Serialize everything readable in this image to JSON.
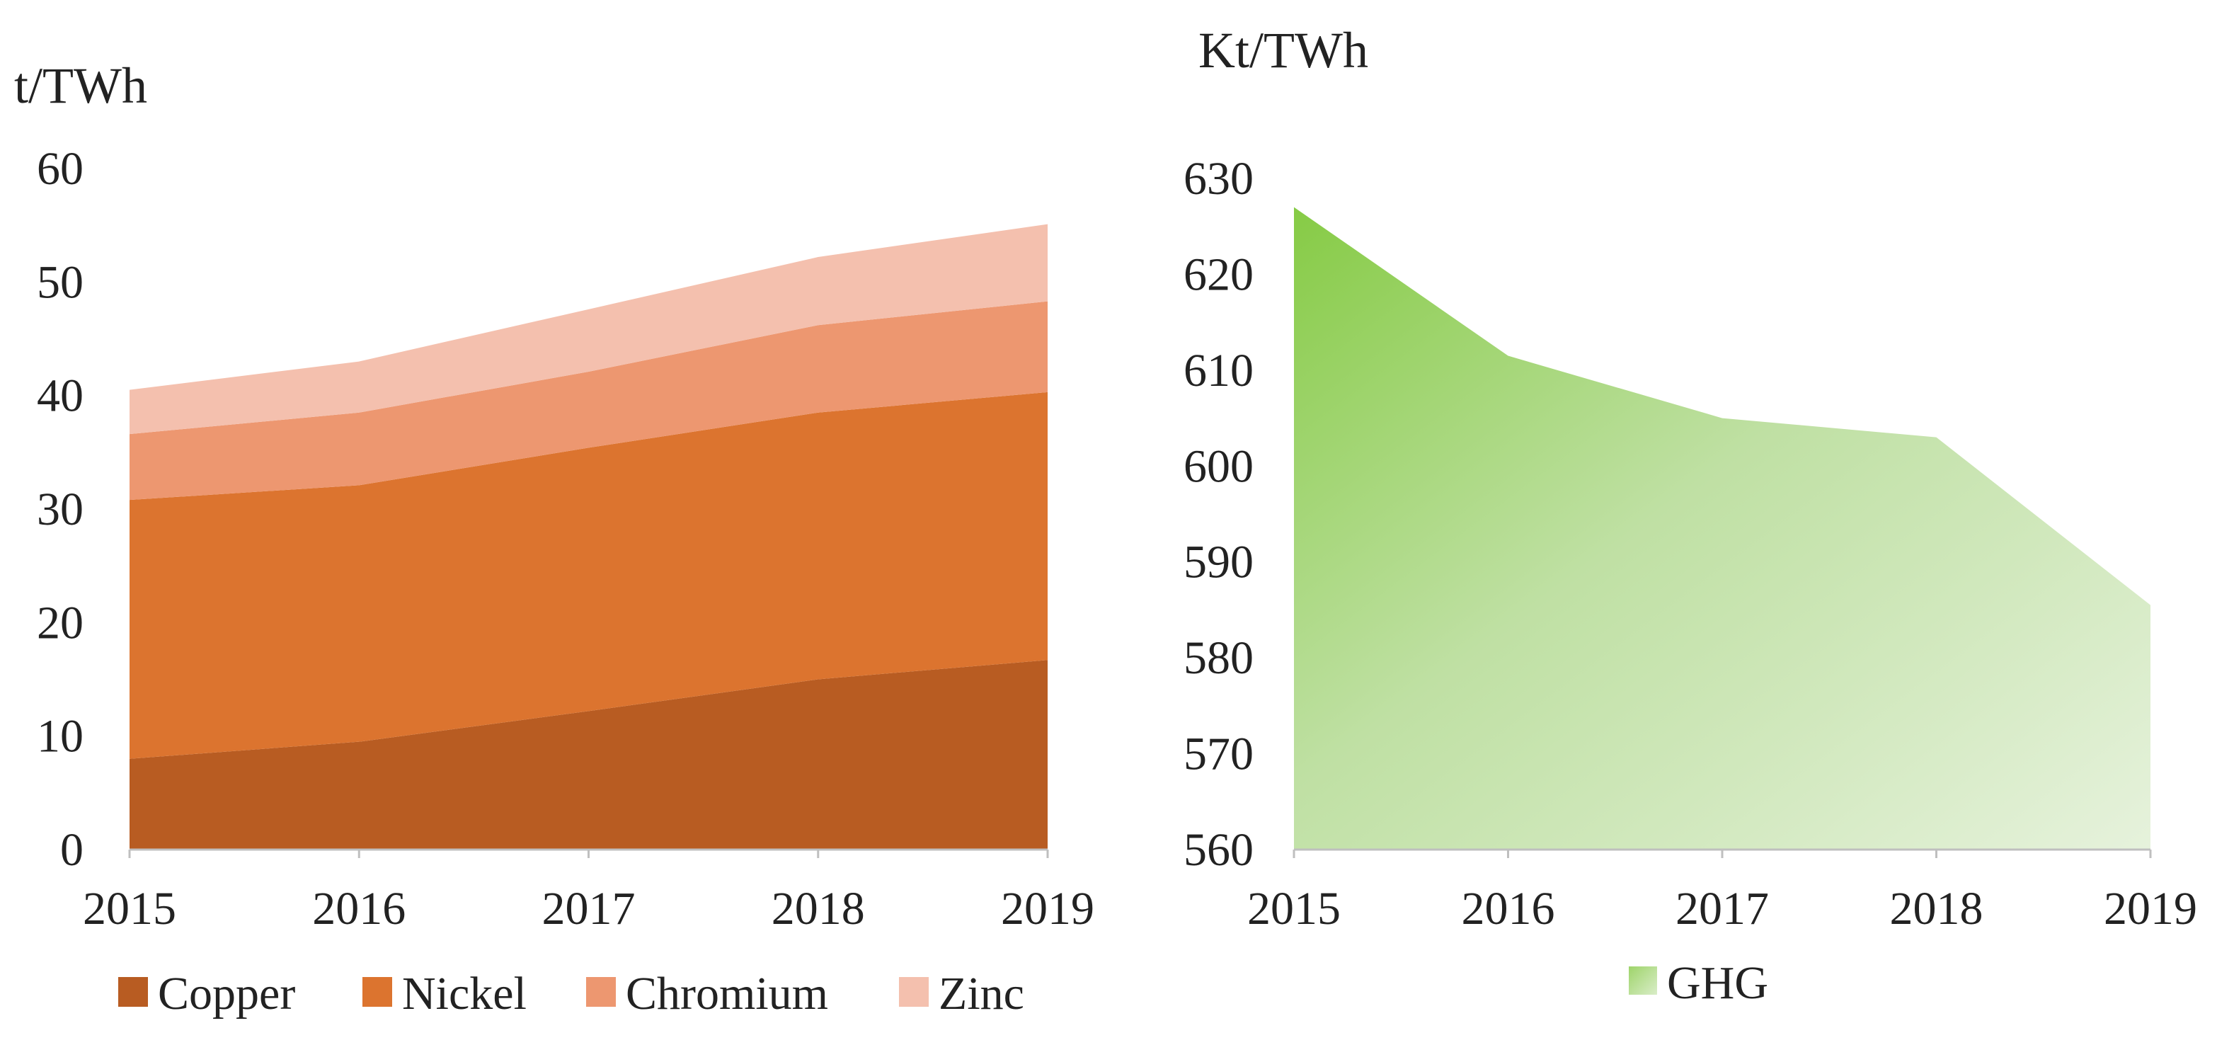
{
  "chart_data": [
    {
      "type": "area",
      "stacked": true,
      "ylabel": "t/TWh",
      "ylim": [
        0,
        60
      ],
      "yticks": [
        0,
        10,
        20,
        30,
        40,
        50,
        60
      ],
      "x": [
        "2015",
        "2016",
        "2017",
        "2018",
        "2019"
      ],
      "grid": false,
      "legend_position": "bottom",
      "series": [
        {
          "name": "Copper",
          "color": "#b85c22",
          "values": [
            8.0,
            9.5,
            12.2,
            15.0,
            16.7
          ]
        },
        {
          "name": "Nickel",
          "color": "#dc742f",
          "values": [
            22.8,
            22.6,
            23.2,
            23.5,
            23.6
          ]
        },
        {
          "name": "Chromium",
          "color": "#ed9770",
          "values": [
            5.8,
            6.4,
            6.7,
            7.7,
            8.0
          ]
        },
        {
          "name": "Zinc",
          "color": "#f4c0ae",
          "values": [
            3.9,
            4.5,
            5.5,
            6.0,
            6.8
          ]
        }
      ]
    },
    {
      "type": "area",
      "ylabel": "Kt/TWh",
      "ylim": [
        560,
        630
      ],
      "yticks": [
        560,
        570,
        580,
        590,
        600,
        610,
        620,
        630
      ],
      "x": [
        "2015",
        "2016",
        "2017",
        "2018",
        "2019"
      ],
      "grid": false,
      "legend_position": "bottom",
      "series": [
        {
          "name": "GHG",
          "color": "#92d050",
          "values": [
            627,
            611.5,
            605,
            603,
            585.5
          ]
        }
      ]
    }
  ]
}
